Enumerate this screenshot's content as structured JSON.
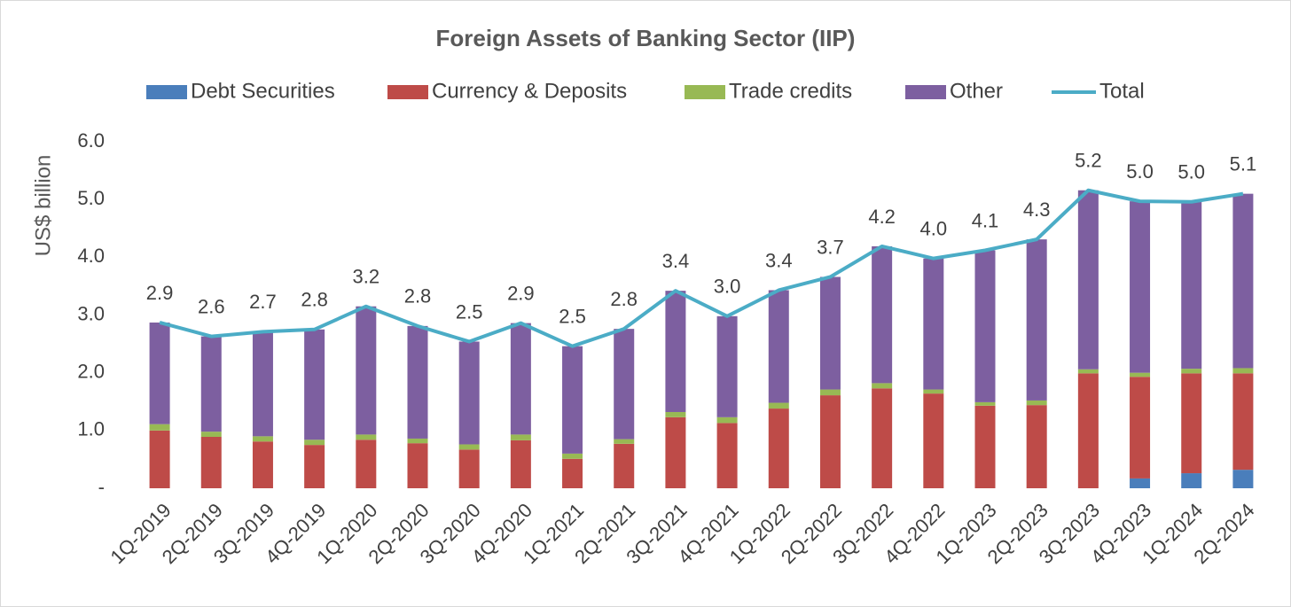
{
  "chart_data": {
    "type": "bar",
    "title": "Foreign Assets of Banking Sector (IIP)",
    "y_label": "US$ billion",
    "categories": [
      "1Q-2019",
      "2Q-2019",
      "3Q-2019",
      "4Q-2019",
      "1Q-2020",
      "2Q-2020",
      "3Q-2020",
      "4Q-2020",
      "1Q-2021",
      "2Q-2021",
      "3Q-2021",
      "4Q-2021",
      "1Q-2022",
      "2Q-2022",
      "3Q-2022",
      "4Q-2022",
      "1Q-2023",
      "2Q-2023",
      "3Q-2023",
      "4Q-2023",
      "1Q-2024",
      "2Q-2024"
    ],
    "stacked": true,
    "series": [
      {
        "name": "Debt Securities",
        "color": "#4a7ebb",
        "type": "bar",
        "values": [
          0,
          0,
          0,
          0,
          0,
          0,
          0,
          0,
          0,
          0,
          0,
          0,
          0,
          0,
          0,
          0,
          0,
          0,
          0,
          0.17,
          0.26,
          0.32
        ]
      },
      {
        "name": "Currency & Deposits",
        "color": "#be4b48",
        "type": "bar",
        "values": [
          1.0,
          0.89,
          0.81,
          0.75,
          0.84,
          0.78,
          0.67,
          0.83,
          0.51,
          0.77,
          1.23,
          1.13,
          1.38,
          1.61,
          1.73,
          1.64,
          1.43,
          1.44,
          1.99,
          1.76,
          1.73,
          1.67
        ]
      },
      {
        "name": "Trade credits",
        "color": "#98b954",
        "type": "bar",
        "values": [
          0.11,
          0.09,
          0.09,
          0.09,
          0.09,
          0.08,
          0.09,
          0.1,
          0.09,
          0.08,
          0.09,
          0.1,
          0.1,
          0.1,
          0.09,
          0.07,
          0.06,
          0.08,
          0.07,
          0.07,
          0.08,
          0.09
        ]
      },
      {
        "name": "Other",
        "color": "#7d5fa0",
        "type": "bar",
        "values": [
          1.76,
          1.65,
          1.81,
          1.91,
          2.22,
          1.95,
          1.78,
          1.93,
          1.86,
          1.91,
          2.1,
          1.75,
          1.95,
          1.95,
          2.37,
          2.27,
          2.63,
          2.79,
          3.1,
          2.97,
          2.89,
          3.02
        ]
      },
      {
        "name": "Total",
        "color": "#4bacc6",
        "type": "line",
        "values": [
          2.87,
          2.63,
          2.71,
          2.75,
          3.15,
          2.81,
          2.54,
          2.86,
          2.46,
          2.76,
          3.42,
          2.98,
          3.43,
          3.66,
          4.19,
          3.98,
          4.12,
          4.31,
          5.16,
          4.97,
          4.96,
          5.1
        ],
        "value_labels": [
          "2.9",
          "2.6",
          "2.7",
          "2.8",
          "3.2",
          "2.8",
          "2.5",
          "2.9",
          "2.5",
          "2.8",
          "3.4",
          "3.0",
          "3.4",
          "3.7",
          "4.2",
          "4.0",
          "4.1",
          "4.3",
          "5.2",
          "5.0",
          "5.0",
          "5.1"
        ]
      }
    ],
    "ylim": [
      0,
      6
    ],
    "yticks": [
      {
        "value": 0,
        "label": "-"
      },
      {
        "value": 1,
        "label": "1.0"
      },
      {
        "value": 2,
        "label": "2.0"
      },
      {
        "value": 3,
        "label": "3.0"
      },
      {
        "value": 4,
        "label": "4.0"
      },
      {
        "value": 5,
        "label": "5.0"
      },
      {
        "value": 6,
        "label": "6.0"
      }
    ],
    "grid": false,
    "legend": "top"
  }
}
